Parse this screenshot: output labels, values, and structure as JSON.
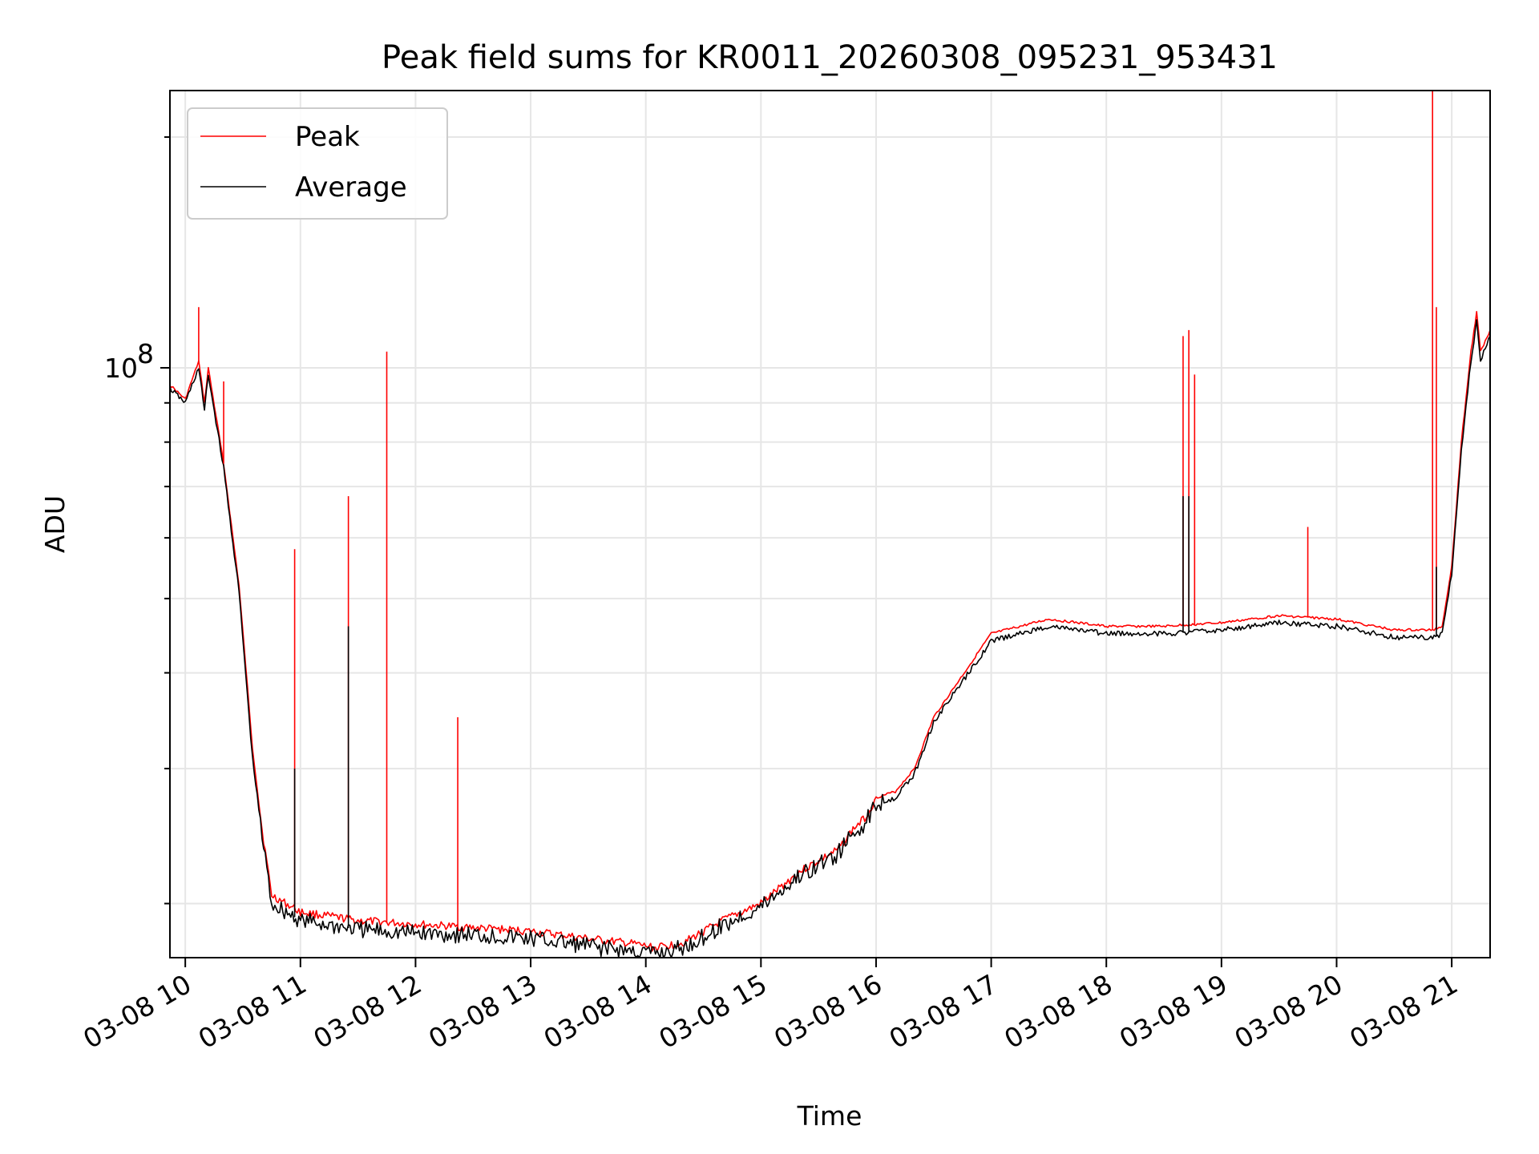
{
  "chart_data": {
    "type": "line",
    "title": "Peak field sums for KR0011_20260308_095231_953431",
    "xlabel": "Time",
    "ylabel": "ADU",
    "xscale": "time",
    "yscale": "log",
    "xlim": [
      "2026-03-08 09:52",
      "2026-03-08 21:20"
    ],
    "ylim": [
      17000000.0,
      230000000.0
    ],
    "x_ticks": [
      "03-08 10",
      "03-08 11",
      "03-08 12",
      "03-08 13",
      "03-08 14",
      "03-08 15",
      "03-08 16",
      "03-08 17",
      "03-08 18",
      "03-08 19",
      "03-08 20",
      "03-08 21"
    ],
    "y_tick_labels": [
      {
        "value": 100000000.0,
        "base": "10",
        "exp": "8"
      }
    ],
    "grid": true,
    "legend": {
      "position": "top-left"
    },
    "colors": {
      "Peak": "#ff0000",
      "Average": "#000000"
    },
    "series": [
      {
        "name": "Peak",
        "x": [
          "2026-03-08 09:52",
          "2026-03-08 10:00",
          "2026-03-08 10:07",
          "2026-03-08 10:10",
          "2026-03-08 10:12",
          "2026-03-08 10:20",
          "2026-03-08 10:28",
          "2026-03-08 10:35",
          "2026-03-08 10:40",
          "2026-03-08 10:45",
          "2026-03-08 11:00",
          "2026-03-08 11:30",
          "2026-03-08 12:00",
          "2026-03-08 12:30",
          "2026-03-08 13:00",
          "2026-03-08 13:30",
          "2026-03-08 13:55",
          "2026-03-08 14:05",
          "2026-03-08 14:20",
          "2026-03-08 14:40",
          "2026-03-08 15:00",
          "2026-03-08 15:20",
          "2026-03-08 15:40",
          "2026-03-08 15:48",
          "2026-03-08 15:55",
          "2026-03-08 16:00",
          "2026-03-08 16:10",
          "2026-03-08 16:20",
          "2026-03-08 16:30",
          "2026-03-08 17:00",
          "2026-03-08 17:30",
          "2026-03-08 18:00",
          "2026-03-08 18:30",
          "2026-03-08 19:00",
          "2026-03-08 19:30",
          "2026-03-08 20:00",
          "2026-03-08 20:30",
          "2026-03-08 20:50",
          "2026-03-08 20:55",
          "2026-03-08 21:00",
          "2026-03-08 21:05",
          "2026-03-08 21:10",
          "2026-03-08 21:13",
          "2026-03-08 21:15",
          "2026-03-08 21:20"
        ],
        "y": [
          95000000.0,
          91000000.0,
          102000000.0,
          90000000.0,
          100000000.0,
          75000000.0,
          52000000.0,
          32000000.0,
          25000000.0,
          20500000.0,
          19500000.0,
          19000000.0,
          18800000.0,
          18600000.0,
          18400000.0,
          18000000.0,
          17700000.0,
          17500000.0,
          17800000.0,
          19000000.0,
          20000000.0,
          22000000.0,
          23500000.0,
          25000000.0,
          26000000.0,
          27500000.0,
          28000000.0,
          30000000.0,
          35000000.0,
          45000000.0,
          47000000.0,
          46000000.0,
          46000000.0,
          46500000.0,
          47500000.0,
          47000000.0,
          45500000.0,
          45500000.0,
          46000000.0,
          55000000.0,
          80000000.0,
          105000000.0,
          118000000.0,
          105000000.0,
          112000000.0
        ],
        "spikes": [
          {
            "x": "2026-03-08 10:07",
            "y": 120000000.0
          },
          {
            "x": "2026-03-08 10:20",
            "y": 96000000.0
          },
          {
            "x": "2026-03-08 10:57",
            "y": 58000000.0
          },
          {
            "x": "2026-03-08 11:25",
            "y": 68000000.0
          },
          {
            "x": "2026-03-08 11:45",
            "y": 105000000.0
          },
          {
            "x": "2026-03-08 12:22",
            "y": 35000000.0
          },
          {
            "x": "2026-03-08 18:40",
            "y": 110000000.0
          },
          {
            "x": "2026-03-08 18:43",
            "y": 112000000.0
          },
          {
            "x": "2026-03-08 18:46",
            "y": 98000000.0
          },
          {
            "x": "2026-03-08 19:45",
            "y": 62000000.0
          },
          {
            "x": "2026-03-08 20:50",
            "y": 230000000.0
          },
          {
            "x": "2026-03-08 20:52",
            "y": 120000000.0
          }
        ]
      },
      {
        "name": "Average",
        "x": [
          "2026-03-08 09:52",
          "2026-03-08 10:00",
          "2026-03-08 10:07",
          "2026-03-08 10:10",
          "2026-03-08 10:12",
          "2026-03-08 10:20",
          "2026-03-08 10:28",
          "2026-03-08 10:35",
          "2026-03-08 10:40",
          "2026-03-08 10:45",
          "2026-03-08 11:00",
          "2026-03-08 11:30",
          "2026-03-08 12:00",
          "2026-03-08 12:30",
          "2026-03-08 13:00",
          "2026-03-08 13:30",
          "2026-03-08 13:55",
          "2026-03-08 14:05",
          "2026-03-08 14:20",
          "2026-03-08 14:40",
          "2026-03-08 15:00",
          "2026-03-08 15:20",
          "2026-03-08 15:40",
          "2026-03-08 15:48",
          "2026-03-08 15:55",
          "2026-03-08 16:00",
          "2026-03-08 16:10",
          "2026-03-08 16:20",
          "2026-03-08 16:30",
          "2026-03-08 17:00",
          "2026-03-08 17:30",
          "2026-03-08 18:00",
          "2026-03-08 18:30",
          "2026-03-08 19:00",
          "2026-03-08 19:30",
          "2026-03-08 20:00",
          "2026-03-08 20:30",
          "2026-03-08 20:50",
          "2026-03-08 20:55",
          "2026-03-08 21:00",
          "2026-03-08 21:05",
          "2026-03-08 21:10",
          "2026-03-08 21:13",
          "2026-03-08 21:15",
          "2026-03-08 21:20"
        ],
        "y": [
          94000000.0,
          90000000.0,
          100000000.0,
          88000000.0,
          98000000.0,
          74000000.0,
          51000000.0,
          31000000.0,
          24500000.0,
          20000000.0,
          19000000.0,
          18500000.0,
          18300000.0,
          18200000.0,
          18000000.0,
          17600000.0,
          17300000.0,
          17200000.0,
          17500000.0,
          18700000.0,
          19800000.0,
          21700000.0,
          23200000.0,
          24600000.0,
          25600000.0,
          27000000.0,
          27500000.0,
          29500000.0,
          34500000.0,
          44000000.0,
          46000000.0,
          45000000.0,
          45000000.0,
          45500000.0,
          46500000.0,
          46000000.0,
          44500000.0,
          44500000.0,
          45000000.0,
          54000000.0,
          78000000.0,
          102000000.0,
          115000000.0,
          102000000.0,
          110000000.0
        ],
        "spikes": [
          {
            "x": "2026-03-08 10:57",
            "y": 30000000.0
          },
          {
            "x": "2026-03-08 11:25",
            "y": 46000000.0
          },
          {
            "x": "2026-03-08 18:40",
            "y": 68000000.0
          },
          {
            "x": "2026-03-08 18:43",
            "y": 68000000.0
          },
          {
            "x": "2026-03-08 20:52",
            "y": 55000000.0
          }
        ]
      }
    ]
  }
}
